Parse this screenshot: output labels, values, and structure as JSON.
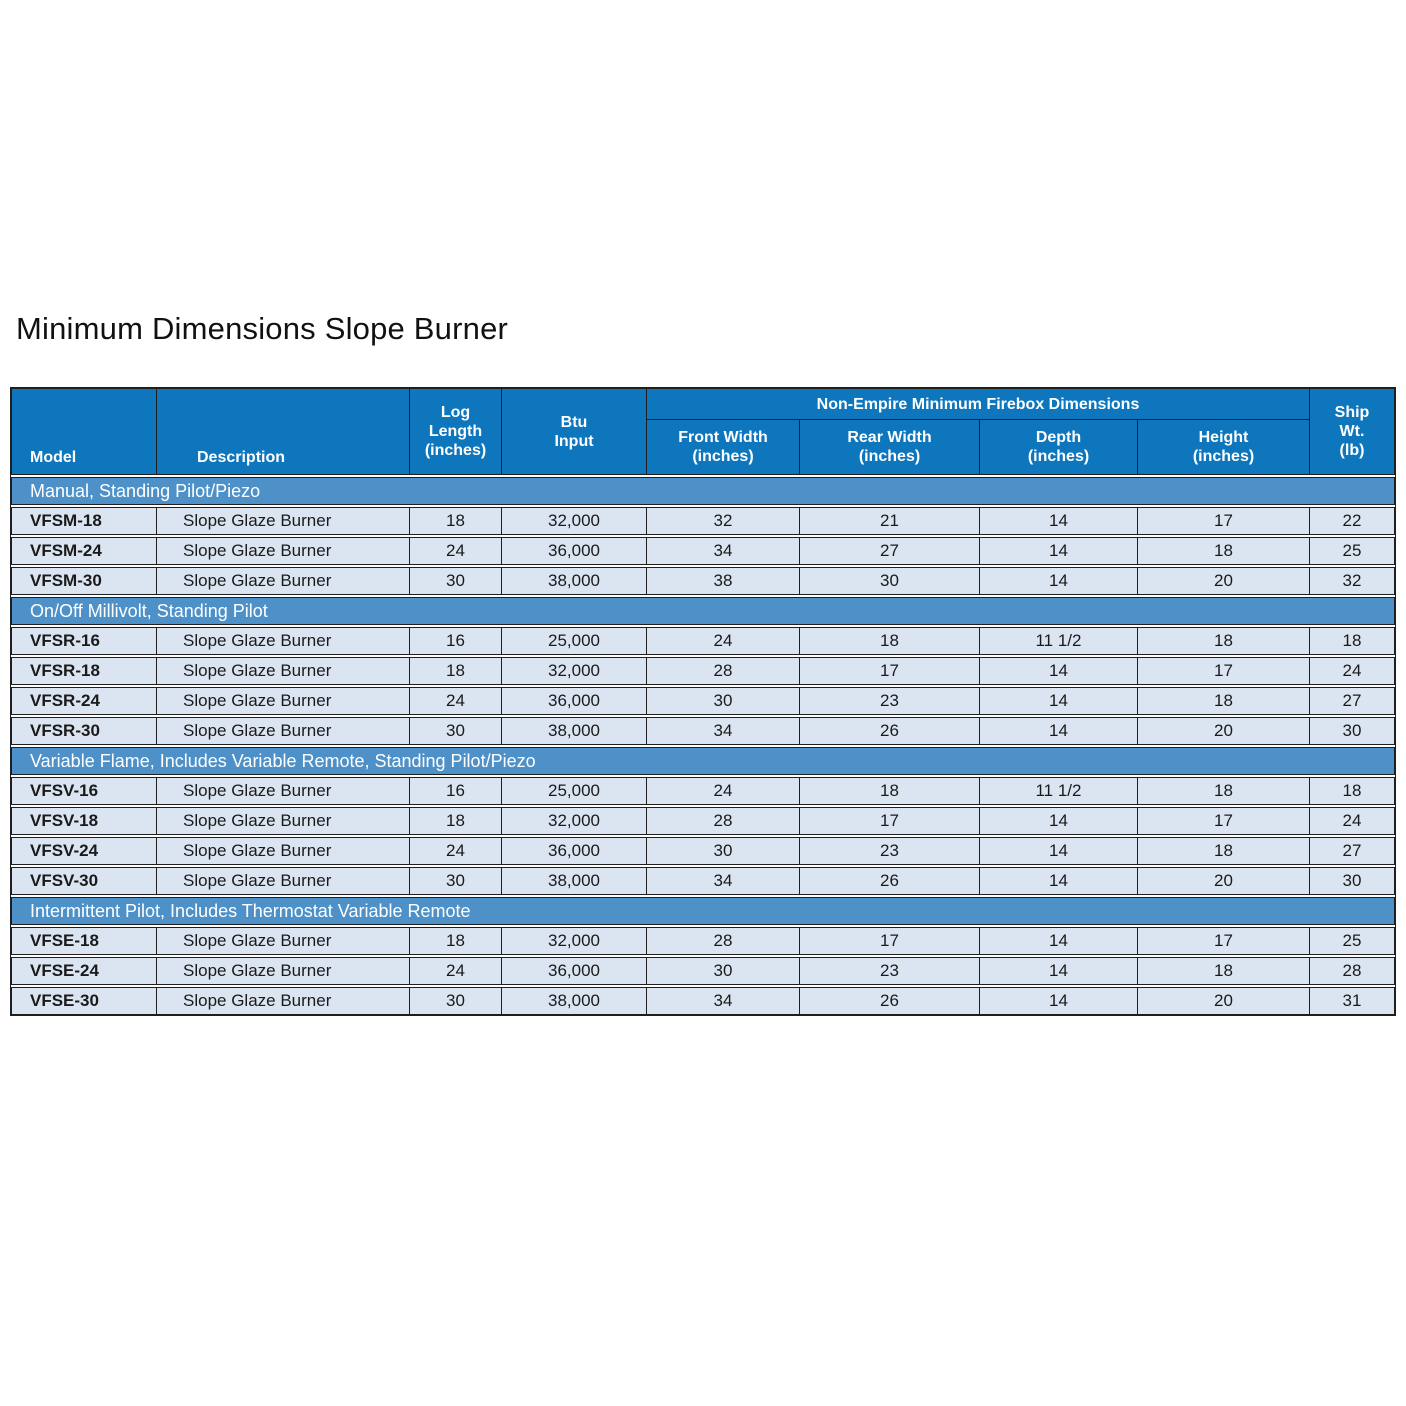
{
  "title": "Minimum Dimensions Slope Burner",
  "colors": {
    "header_blue": "#0e76bc",
    "section_blue": "#4e91c8",
    "row_blue": "#dbe5f2",
    "border": "#1f1f1f"
  },
  "table": {
    "header": {
      "model": "Model",
      "description": "Description",
      "log_length": "Log\nLength\n(inches)",
      "btu_input": "Btu\nInput",
      "firebox_group": "Non-Empire Minimum Firebox Dimensions",
      "front_width": "Front Width\n(inches)",
      "rear_width": "Rear Width\n(inches)",
      "depth": "Depth\n(inches)",
      "height": "Height\n(inches)",
      "ship_wt": "Ship\nWt.\n(lb)"
    },
    "sections": [
      {
        "label": "Manual, Standing Pilot/Piezo",
        "rows": [
          {
            "cells": [
              "VFSM-18",
              "Slope Glaze Burner",
              "18",
              "32,000",
              "32",
              "21",
              "14",
              "17",
              "22"
            ]
          },
          {
            "cells": [
              "VFSM-24",
              "Slope Glaze Burner",
              "24",
              "36,000",
              "34",
              "27",
              "14",
              "18",
              "25"
            ]
          },
          {
            "cells": [
              "VFSM-30",
              "Slope Glaze Burner",
              "30",
              "38,000",
              "38",
              "30",
              "14",
              "20",
              "32"
            ]
          }
        ]
      },
      {
        "label": "On/Off Millivolt, Standing Pilot",
        "rows": [
          {
            "cells": [
              "VFSR-16",
              "Slope Glaze Burner",
              "16",
              "25,000",
              "24",
              "18",
              "11 1/2",
              "18",
              "18"
            ]
          },
          {
            "cells": [
              "VFSR-18",
              "Slope Glaze Burner",
              "18",
              "32,000",
              "28",
              "17",
              "14",
              "17",
              "24"
            ]
          },
          {
            "cells": [
              "VFSR-24",
              "Slope Glaze Burner",
              "24",
              "36,000",
              "30",
              "23",
              "14",
              "18",
              "27"
            ]
          },
          {
            "cells": [
              "VFSR-30",
              "Slope Glaze Burner",
              "30",
              "38,000",
              "34",
              "26",
              "14",
              "20",
              "30"
            ]
          }
        ]
      },
      {
        "label": "Variable Flame, Includes Variable Remote, Standing Pilot/Piezo",
        "rows": [
          {
            "cells": [
              "VFSV-16",
              "Slope Glaze Burner",
              "16",
              "25,000",
              "24",
              "18",
              "11 1/2",
              "18",
              "18"
            ]
          },
          {
            "cells": [
              "VFSV-18",
              "Slope Glaze Burner",
              "18",
              "32,000",
              "28",
              "17",
              "14",
              "17",
              "24"
            ]
          },
          {
            "cells": [
              "VFSV-24",
              "Slope Glaze Burner",
              "24",
              "36,000",
              "30",
              "23",
              "14",
              "18",
              "27"
            ]
          },
          {
            "cells": [
              "VFSV-30",
              "Slope Glaze Burner",
              "30",
              "38,000",
              "34",
              "26",
              "14",
              "20",
              "30"
            ]
          }
        ]
      },
      {
        "label": "Intermittent Pilot, Includes Thermostat Variable Remote",
        "rows": [
          {
            "cells": [
              "VFSE-18",
              "Slope Glaze Burner",
              "18",
              "32,000",
              "28",
              "17",
              "14",
              "17",
              "25"
            ]
          },
          {
            "cells": [
              "VFSE-24",
              "Slope Glaze Burner",
              "24",
              "36,000",
              "30",
              "23",
              "14",
              "18",
              "28"
            ]
          },
          {
            "cells": [
              "VFSE-30",
              "Slope Glaze Burner",
              "30",
              "38,000",
              "34",
              "26",
              "14",
              "20",
              "31"
            ]
          }
        ]
      }
    ]
  }
}
